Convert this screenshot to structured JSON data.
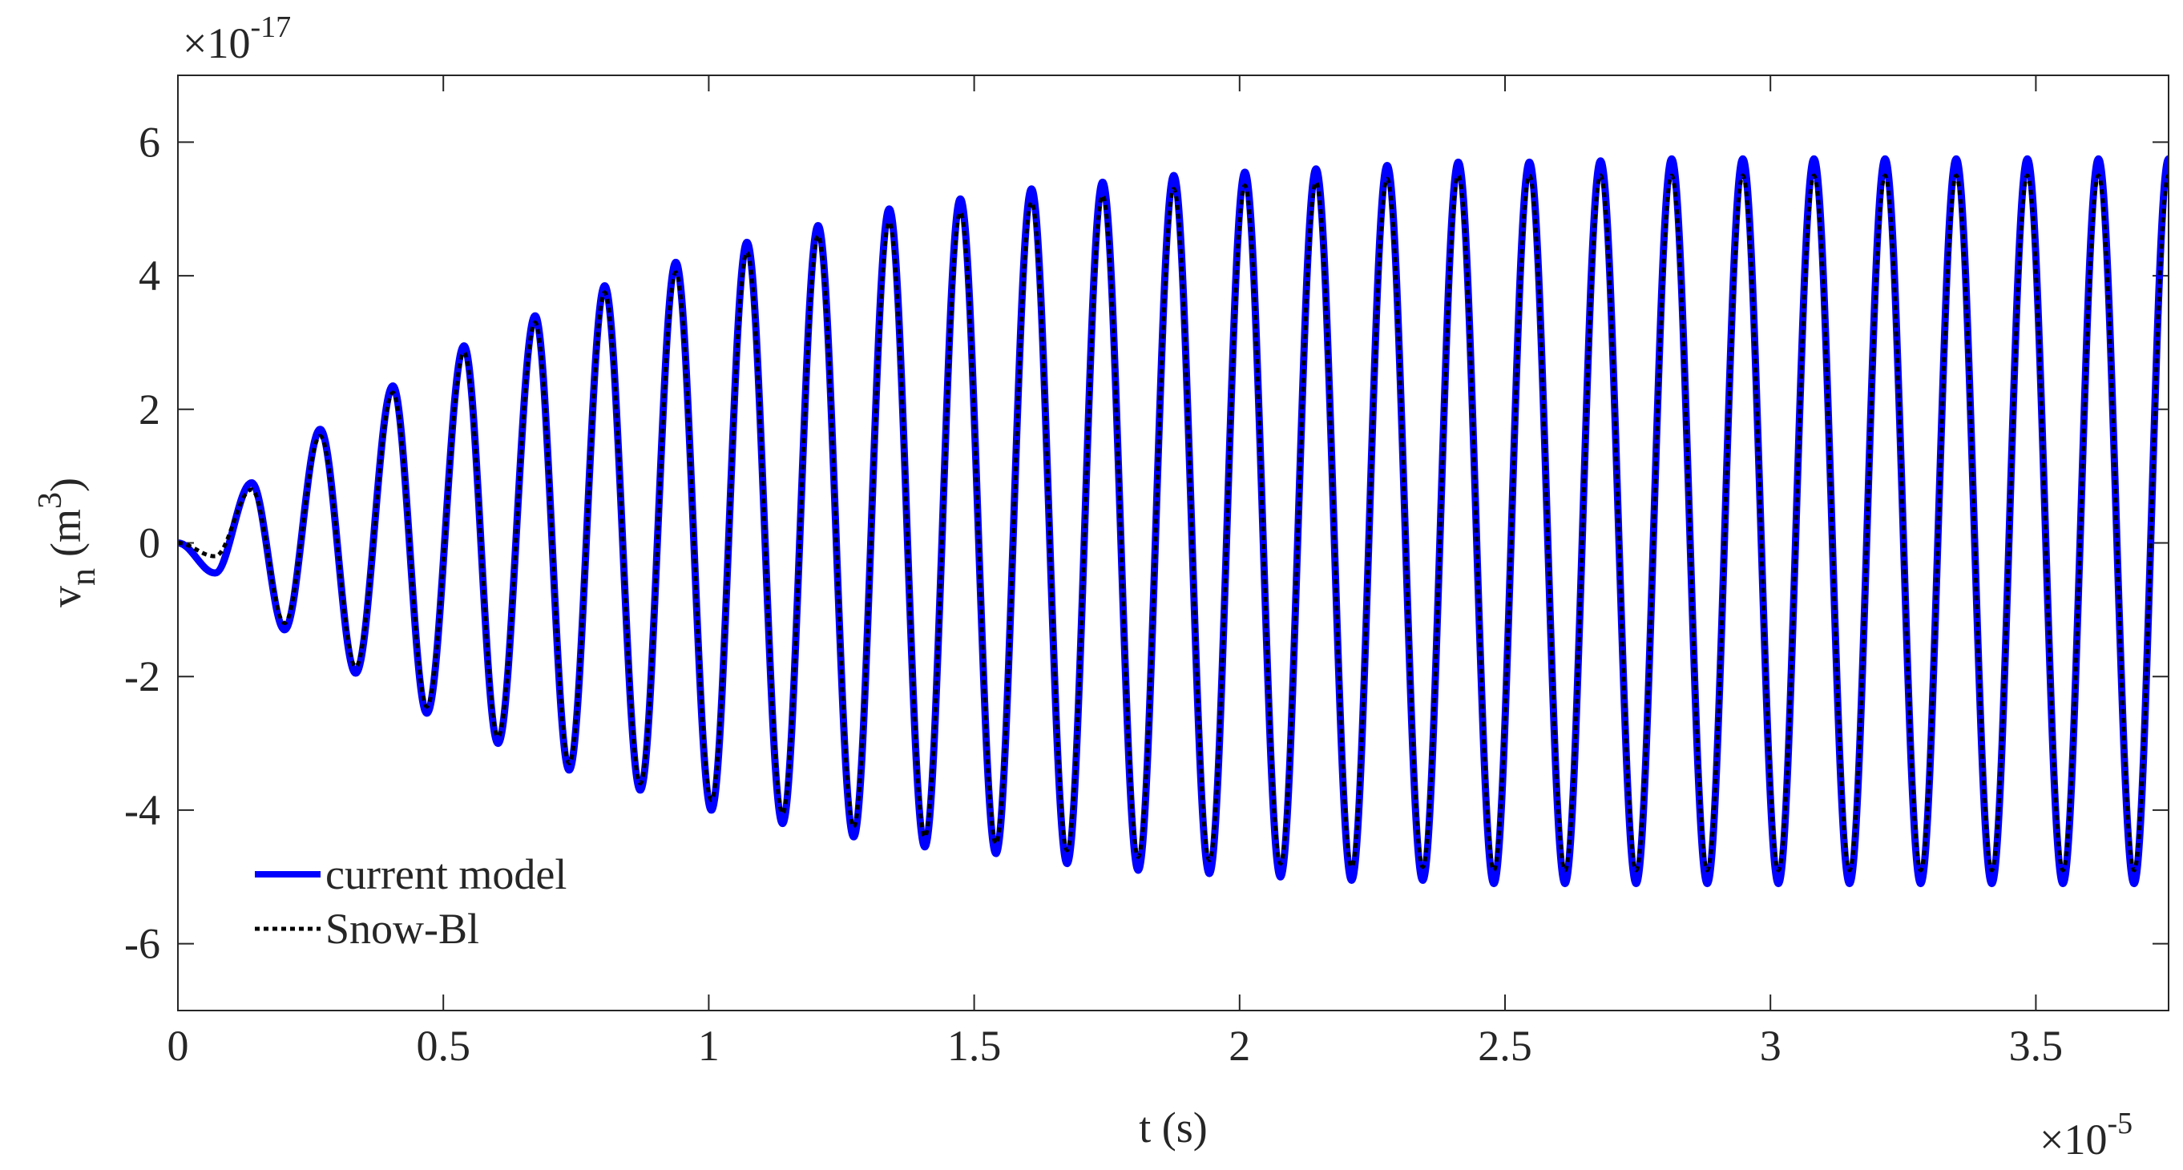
{
  "chart_data": {
    "type": "line",
    "xlabel": "t (s)",
    "ylabel": [
      "v",
      "n",
      "(m",
      "3",
      ")"
    ],
    "x_multiplier": [
      "×10",
      "-5"
    ],
    "y_multiplier": [
      "×10",
      "-17"
    ],
    "xlim": [
      0,
      3.75
    ],
    "xticks": [
      0,
      0.5,
      1,
      1.5,
      2,
      2.5,
      3,
      3.5
    ],
    "ylim": [
      -7,
      7
    ],
    "yticks": [
      -6,
      -4,
      -2,
      0,
      2,
      4,
      6
    ],
    "legend": "lower left",
    "x": [
      0,
      0.07,
      0.139,
      0.201,
      0.268,
      0.335,
      0.405,
      0.469,
      0.539,
      0.603,
      0.673,
      0.737,
      0.804,
      0.871,
      0.938,
      1.005,
      1.072,
      1.139,
      1.206,
      1.273,
      1.34,
      1.407,
      1.474,
      1.541,
      1.608,
      1.675,
      1.742,
      1.809,
      1.876,
      1.943,
      2.01,
      2.077,
      2.144,
      2.211,
      2.278,
      2.345,
      2.412,
      2.479,
      2.546,
      2.613,
      2.68,
      2.747,
      2.814,
      2.881,
      2.948,
      3.015,
      3.082,
      3.149,
      3.216,
      3.283,
      3.35,
      3.417,
      3.484,
      3.551,
      3.618,
      3.685,
      3.75
    ],
    "series": [
      {
        "name": "current model",
        "color": "#0000ff",
        "style": "solid",
        "values": [
          0,
          -0.45,
          0.9,
          -1.3,
          1.7,
          -1.95,
          2.35,
          -2.55,
          2.95,
          -3.0,
          3.4,
          -3.4,
          3.85,
          -3.7,
          4.2,
          -4.0,
          4.5,
          -4.2,
          4.75,
          -4.4,
          5.0,
          -4.55,
          5.15,
          -4.65,
          5.3,
          -4.8,
          5.4,
          -4.9,
          5.5,
          -4.95,
          5.55,
          -5.0,
          5.6,
          -5.05,
          5.65,
          -5.05,
          5.7,
          -5.1,
          5.7,
          -5.1,
          5.72,
          -5.1,
          5.75,
          -5.1,
          5.75,
          -5.1,
          5.75,
          -5.1,
          5.75,
          -5.1,
          5.75,
          -5.1,
          5.75,
          -5.1,
          5.75,
          -5.1,
          5.75
        ]
      },
      {
        "name": "Snow-Bl",
        "color": "#000000",
        "style": "dotted",
        "values": [
          0,
          -0.2,
          0.8,
          -1.2,
          1.6,
          -1.85,
          2.25,
          -2.45,
          2.85,
          -2.9,
          3.3,
          -3.3,
          3.75,
          -3.6,
          4.05,
          -3.85,
          4.35,
          -4.05,
          4.6,
          -4.25,
          4.8,
          -4.4,
          4.95,
          -4.5,
          5.1,
          -4.6,
          5.2,
          -4.7,
          5.3,
          -4.75,
          5.35,
          -4.8,
          5.4,
          -4.85,
          5.45,
          -4.85,
          5.5,
          -4.9,
          5.5,
          -4.9,
          5.5,
          -4.9,
          5.5,
          -4.9,
          5.5,
          -4.9,
          5.5,
          -4.9,
          5.5,
          -4.9,
          5.5,
          -4.9,
          5.5,
          -4.9,
          5.5,
          -4.9,
          5.5
        ]
      }
    ]
  }
}
